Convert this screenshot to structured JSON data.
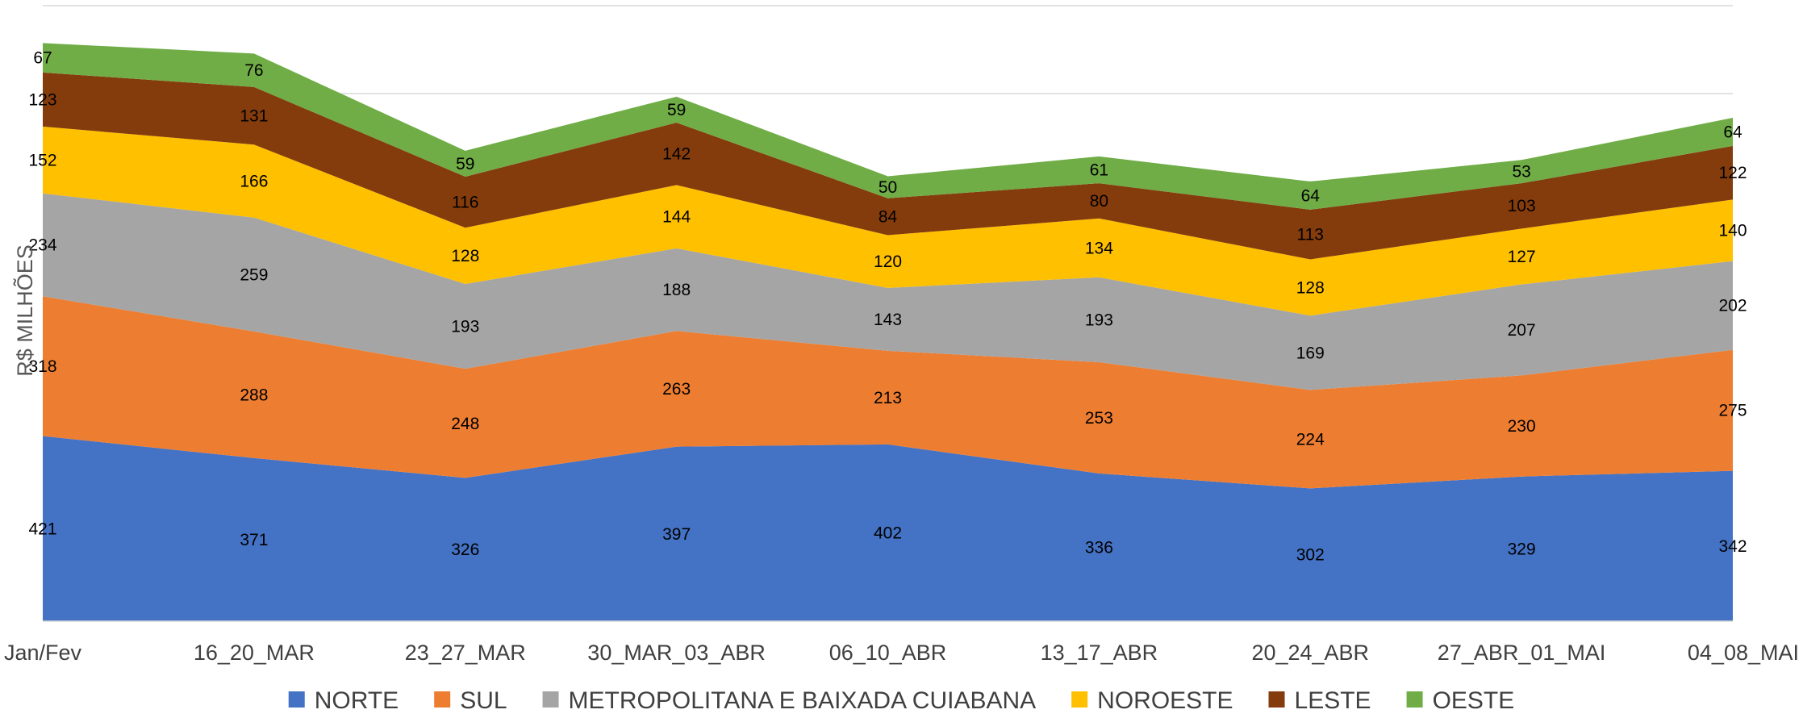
{
  "chart_data": {
    "type": "area",
    "stacked": true,
    "ylabel": "R$ MILHÕES",
    "categories": [
      "Jan/Fev",
      "16_20_MAR",
      "23_27_MAR",
      "30_MAR_03_ABR",
      "06_10_ABR",
      "13_17_ABR",
      "20_24_ABR",
      "27_ABR_01_MAI",
      "04_08_MAI"
    ],
    "series": [
      {
        "name": "NORTE",
        "color": "#4472C4",
        "values": [
          421,
          371,
          326,
          397,
          402,
          336,
          302,
          329,
          342
        ]
      },
      {
        "name": "SUL",
        "color": "#ED7D31",
        "values": [
          318,
          288,
          248,
          263,
          213,
          253,
          224,
          230,
          275
        ]
      },
      {
        "name": "METROPOLITANA E BAIXADA CUIABANA",
        "color": "#A5A5A5",
        "values": [
          234,
          259,
          193,
          188,
          143,
          193,
          169,
          207,
          202
        ]
      },
      {
        "name": "NOROESTE",
        "color": "#FFC000",
        "values": [
          152,
          166,
          128,
          144,
          120,
          134,
          128,
          127,
          140
        ]
      },
      {
        "name": "LESTE",
        "color": "#843C0C",
        "values": [
          123,
          131,
          116,
          142,
          84,
          80,
          113,
          103,
          122
        ]
      },
      {
        "name": "OESTE",
        "color": "#70AD47",
        "values": [
          67,
          76,
          59,
          59,
          50,
          61,
          64,
          53,
          64
        ]
      }
    ],
    "ylim": [
      0,
      1400
    ],
    "grid": true,
    "legend": "bottom"
  }
}
